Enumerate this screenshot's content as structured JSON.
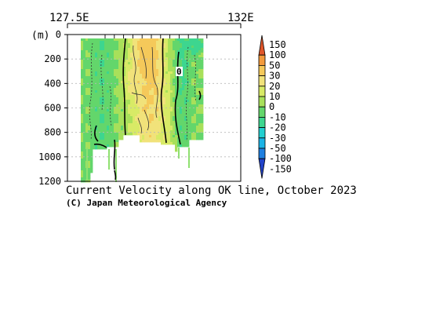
{
  "chart_data": {
    "type": "heatmap",
    "title": "Current Velocity along OK line, October 2023",
    "credit": "(C) Japan Meteorological Agency",
    "x_top_labels": [
      "127.5E",
      "132E"
    ],
    "ylabel": "(m)",
    "y_ticks": [
      0,
      200,
      400,
      600,
      800,
      1000,
      1200
    ],
    "ylim": [
      1200,
      0
    ],
    "colorbar": {
      "labels": [
        "150",
        "100",
        "50",
        "30",
        "20",
        "10",
        "0",
        "-10",
        "-20",
        "-30",
        "-50",
        "-100",
        "-150"
      ],
      "levels": [
        -150,
        -100,
        -50,
        -30,
        -20,
        -10,
        0,
        10,
        20,
        30,
        50,
        100,
        150
      ],
      "colors": [
        "#2243c8",
        "#1e7fe0",
        "#1ab3e6",
        "#22cfd0",
        "#3dd68f",
        "#63d66b",
        "#a8e05a",
        "#d8ea66",
        "#f1e27a",
        "#f5c95a",
        "#f39a3c",
        "#e0562a"
      ]
    },
    "contour_labels": [
      "0"
    ]
  },
  "colors": {
    "grid": "#b8b8b8",
    "no_data": "#ffffff"
  }
}
